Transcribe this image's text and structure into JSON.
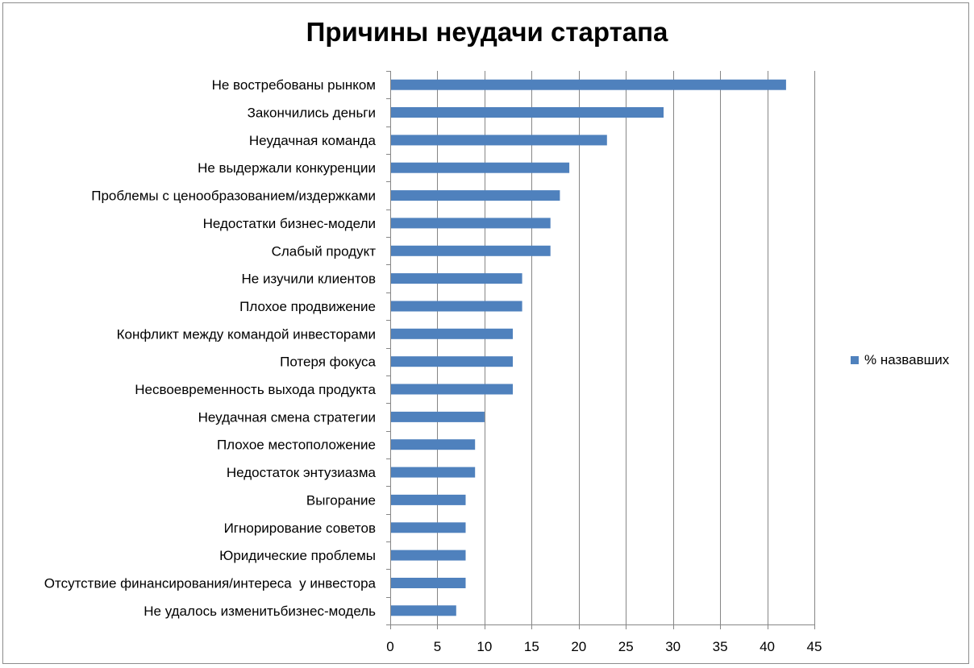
{
  "chart_data": {
    "type": "bar",
    "orientation": "horizontal",
    "title": "Причины неудачи стартапа",
    "xlabel": "",
    "ylabel": "",
    "xlim": [
      0,
      45
    ],
    "x_ticks": [
      0,
      5,
      10,
      15,
      20,
      25,
      30,
      35,
      40,
      45
    ],
    "grid": "vertical",
    "legend_position": "right",
    "categories": [
      "Не востребованы рынком",
      "Закончились деньги",
      "Неудачная команда",
      "Не выдержали конкуренции",
      "Проблемы с ценообразованием/издержками",
      "Недостатки бизнес-модели",
      "Слабый продукт",
      "Не изучили клиентов",
      "Плохое продвижение",
      "Конфликт между командой инвесторами",
      "Потеря фокуса",
      "Несвоевременность выхода продукта",
      "Неудачная смена стратегии",
      "Плохое местоположение",
      "Недостаток энтузиазма",
      "Выгорание",
      "Игнорирование советов",
      "Юридические проблемы",
      "Отсутствие финансирования/интереса  у инвестора",
      "Не удалось изменитьбизнес-модель"
    ],
    "series": [
      {
        "name": "% назвавших",
        "color": "#4f81bd",
        "values": [
          42,
          29,
          23,
          19,
          18,
          17,
          17,
          14,
          14,
          13,
          13,
          13,
          10,
          9,
          9,
          8,
          8,
          8,
          8,
          7
        ]
      }
    ]
  }
}
